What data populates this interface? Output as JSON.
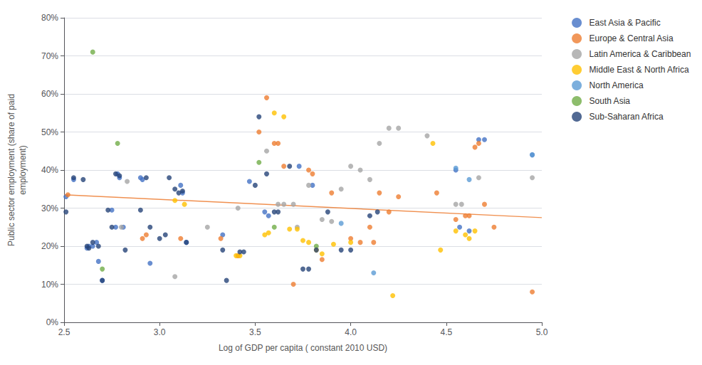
{
  "chart_data": {
    "type": "scatter",
    "xlabel": "Log of GDP per capita ( constant 2010 USD)",
    "ylabel": "Public sector employment (share of paid\nemployment)",
    "xlim": [
      2.5,
      5.0
    ],
    "ylim": [
      0.0,
      0.8
    ],
    "xticks": [
      2.5,
      {
        "value": 3.0,
        "label": "3.0"
      },
      3.5,
      {
        "value": 4.0,
        "label": "4.0"
      },
      4.5,
      {
        "value": 5.0,
        "label": "5.0"
      }
    ],
    "yticks": [
      {
        "value": 0.0,
        "label": "0%"
      },
      {
        "value": 0.1,
        "label": "10%"
      },
      {
        "value": 0.2,
        "label": "20%"
      },
      {
        "value": 0.3,
        "label": "30%"
      },
      {
        "value": 0.4,
        "label": "40%"
      },
      {
        "value": 0.5,
        "label": "50%"
      },
      {
        "value": 0.6,
        "label": "60%"
      },
      {
        "value": 0.7,
        "label": "70%"
      },
      {
        "value": 0.8,
        "label": "80%"
      }
    ],
    "grid": true,
    "legend": "upper right",
    "marker": "circle",
    "series": [
      {
        "name": "East Asia & Pacific",
        "color": "#4472c4",
        "x": [
          2.51,
          2.55,
          2.62,
          2.63,
          2.65,
          2.67,
          2.68,
          2.7,
          2.75,
          2.77,
          2.78,
          2.79,
          2.81,
          2.9,
          2.91,
          2.95,
          3.11,
          3.12,
          3.14,
          3.33,
          3.47,
          3.55,
          3.57,
          3.73,
          3.8,
          4.55,
          4.57,
          4.62,
          4.67,
          4.7,
          4.95
        ],
        "values": [
          0.33,
          0.375,
          0.195,
          0.2,
          0.2,
          0.21,
          0.16,
          0.11,
          0.295,
          0.25,
          0.39,
          0.38,
          0.25,
          0.38,
          0.375,
          0.155,
          0.36,
          0.34,
          0.21,
          0.23,
          0.37,
          0.29,
          0.28,
          0.41,
          0.36,
          0.4,
          0.25,
          0.24,
          0.48,
          0.48,
          0.44
        ]
      },
      {
        "name": "Europe & Central Asia",
        "color": "#ed7d31",
        "x": [
          2.52,
          2.91,
          2.93,
          3.11,
          3.32,
          3.41,
          3.52,
          3.56,
          3.6,
          3.62,
          3.65,
          3.7,
          3.78,
          3.8,
          3.85,
          3.9,
          4.0,
          4.05,
          4.1,
          4.12,
          4.15,
          4.2,
          4.25,
          4.45,
          4.55,
          4.6,
          4.62,
          4.65,
          4.67,
          4.7,
          4.75,
          4.95
        ],
        "values": [
          0.335,
          0.22,
          0.23,
          0.22,
          0.22,
          0.175,
          0.5,
          0.59,
          0.47,
          0.47,
          0.41,
          0.1,
          0.4,
          0.39,
          0.165,
          0.34,
          0.22,
          0.21,
          0.25,
          0.21,
          0.34,
          0.29,
          0.33,
          0.34,
          0.27,
          0.28,
          0.28,
          0.46,
          0.47,
          0.31,
          0.25,
          0.08
        ]
      },
      {
        "name": "Latin America & Caribbean",
        "color": "#a5a5a5",
        "x": [
          2.8,
          2.83,
          3.08,
          3.25,
          3.41,
          3.56,
          3.62,
          3.65,
          3.7,
          3.72,
          3.78,
          3.85,
          3.9,
          3.95,
          4.0,
          4.05,
          4.1,
          4.15,
          4.2,
          4.25,
          4.4,
          4.55,
          4.58,
          4.67,
          4.95
        ],
        "values": [
          0.25,
          0.37,
          0.12,
          0.25,
          0.3,
          0.45,
          0.31,
          0.31,
          0.31,
          0.25,
          0.36,
          0.27,
          0.265,
          0.35,
          0.41,
          0.4,
          0.375,
          0.47,
          0.51,
          0.51,
          0.49,
          0.31,
          0.31,
          0.38,
          0.38
        ]
      },
      {
        "name": "Middle East & North Africa",
        "color": "#ffc000",
        "x": [
          3.08,
          3.13,
          3.4,
          3.42,
          3.55,
          3.57,
          3.6,
          3.65,
          3.68,
          3.72,
          3.75,
          3.78,
          3.82,
          3.85,
          3.91,
          4.0,
          4.22,
          4.43,
          4.47,
          4.55,
          4.6,
          4.62,
          4.65
        ],
        "values": [
          0.32,
          0.31,
          0.175,
          0.175,
          0.23,
          0.235,
          0.55,
          0.54,
          0.245,
          0.245,
          0.215,
          0.21,
          0.19,
          0.18,
          0.205,
          0.21,
          0.07,
          0.47,
          0.19,
          0.24,
          0.23,
          0.22,
          0.24
        ]
      },
      {
        "name": "North America",
        "color": "#5b9bd5",
        "x": [
          3.95,
          4.12,
          4.55,
          4.62,
          4.95
        ],
        "values": [
          0.26,
          0.13,
          0.405,
          0.375,
          0.44
        ]
      },
      {
        "name": "South Asia",
        "color": "#70ad47",
        "x": [
          2.65,
          2.7,
          2.78,
          3.52,
          3.6,
          3.82
        ],
        "values": [
          0.71,
          0.14,
          0.47,
          0.42,
          0.25,
          0.2
        ]
      },
      {
        "name": "Sub-Saharan Africa",
        "color": "#264478",
        "x": [
          2.51,
          2.55,
          2.6,
          2.62,
          2.63,
          2.65,
          2.68,
          2.7,
          2.73,
          2.75,
          2.77,
          2.79,
          2.82,
          2.9,
          2.93,
          2.95,
          3.0,
          3.03,
          3.05,
          3.08,
          3.1,
          3.12,
          3.14,
          3.33,
          3.35,
          3.42,
          3.44,
          3.5,
          3.52,
          3.56,
          3.6,
          3.62,
          3.68,
          3.75,
          3.78,
          3.82,
          3.88,
          3.95,
          4.0,
          4.1,
          4.14
        ],
        "values": [
          0.29,
          0.38,
          0.375,
          0.2,
          0.195,
          0.21,
          0.2,
          0.11,
          0.295,
          0.25,
          0.39,
          0.385,
          0.19,
          0.295,
          0.38,
          0.25,
          0.22,
          0.23,
          0.38,
          0.35,
          0.34,
          0.345,
          0.21,
          0.19,
          0.11,
          0.185,
          0.185,
          0.36,
          0.54,
          0.39,
          0.29,
          0.29,
          0.41,
          0.14,
          0.14,
          0.19,
          0.29,
          0.19,
          0.19,
          0.28,
          0.29
        ]
      },
      {
        "type": "line",
        "color": "#ed7d31",
        "x": [
          2.5,
          5.0
        ],
        "values": [
          0.335,
          0.275
        ]
      }
    ]
  }
}
